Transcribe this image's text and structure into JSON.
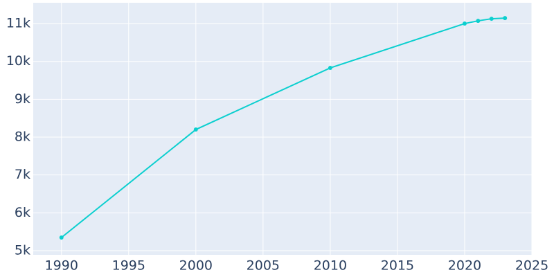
{
  "chart_data": {
    "type": "line",
    "x": [
      1990,
      2000,
      2010,
      2020,
      2021,
      2022,
      2023
    ],
    "series": [
      {
        "color": "#0ccfcf",
        "values": [
          5348,
          8201,
          9829,
          11000,
          11073,
          11128,
          11146
        ]
      }
    ],
    "xlim": [
      1987.9,
      2025
    ],
    "xticks": [
      1990,
      1995,
      2000,
      2005,
      2010,
      2015,
      2020,
      2025
    ],
    "ylim": [
      4890,
      11550
    ],
    "yticks": [
      {
        "value": 5000,
        "label": "5k"
      },
      {
        "value": 6000,
        "label": "6k"
      },
      {
        "value": 7000,
        "label": "7k"
      },
      {
        "value": 8000,
        "label": "8k"
      },
      {
        "value": 9000,
        "label": "9k"
      },
      {
        "value": 10000,
        "label": "10k"
      },
      {
        "value": 11000,
        "label": "11k"
      }
    ],
    "grid": true,
    "background": "#e5ecf6"
  }
}
